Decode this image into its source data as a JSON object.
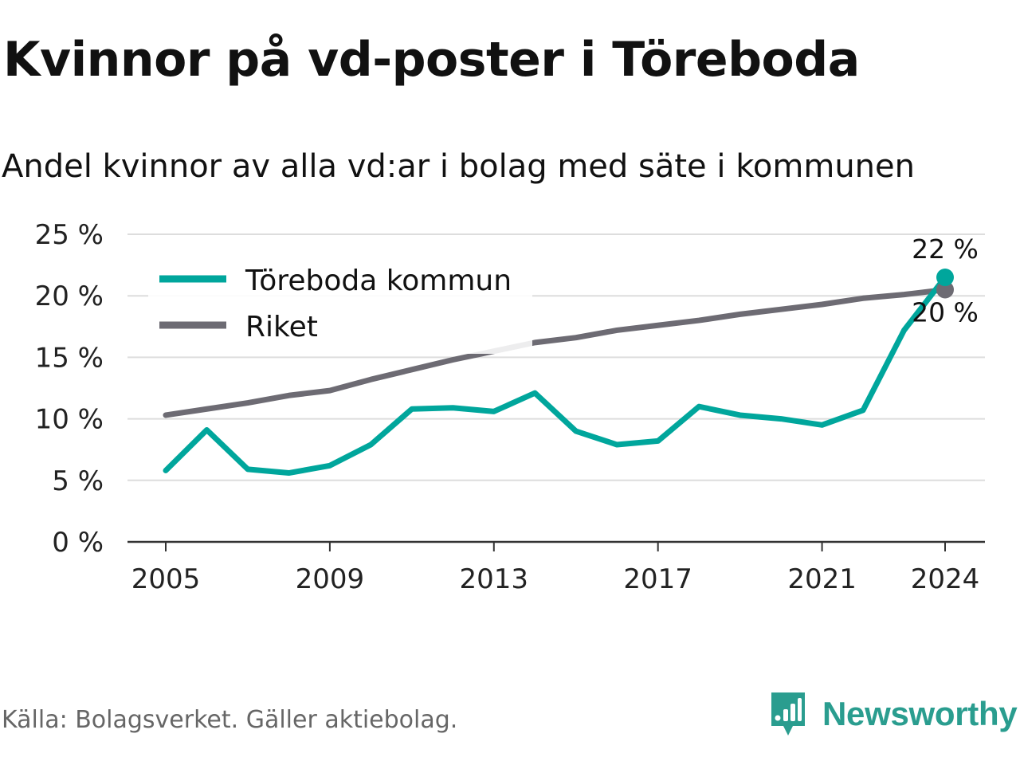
{
  "title": "Kvinnor på vd-poster i Töreboda",
  "subtitle": "Andel kvinnor av alla vd:ar i bolag med säte i kommunen",
  "source": "Källa: Bolagsverket. Gäller aktiebolag.",
  "brand": "Newsworthy",
  "colors": {
    "toreboda": "#00a69c",
    "riket": "#6d6b73",
    "grid": "#dddddd",
    "axis": "#333333",
    "brand": "#2a9d8f"
  },
  "chart_data": {
    "type": "line",
    "x": [
      2005,
      2006,
      2007,
      2008,
      2009,
      2010,
      2011,
      2012,
      2013,
      2014,
      2015,
      2016,
      2017,
      2018,
      2019,
      2020,
      2021,
      2022,
      2023,
      2024
    ],
    "x_ticks": [
      "2005",
      "2009",
      "2013",
      "2017",
      "2021",
      "2024"
    ],
    "y_ticks": [
      "0 %",
      "5 %",
      "10 %",
      "15 %",
      "20 %",
      "25 %"
    ],
    "ylim": [
      0,
      25
    ],
    "grid": true,
    "legend_position": "top-left",
    "series": [
      {
        "name": "Töreboda kommun",
        "values": [
          5.8,
          9.1,
          5.9,
          5.6,
          6.2,
          7.9,
          10.8,
          10.9,
          10.6,
          12.1,
          9.0,
          7.9,
          8.2,
          11.0,
          10.3,
          10.0,
          9.5,
          10.7,
          17.2,
          21.5
        ],
        "end_label": "22 %"
      },
      {
        "name": "Riket",
        "values": [
          10.3,
          10.8,
          11.3,
          11.9,
          12.3,
          13.2,
          14.0,
          14.8,
          15.5,
          16.2,
          16.6,
          17.2,
          17.6,
          18.0,
          18.5,
          18.9,
          19.3,
          19.8,
          20.1,
          20.5
        ],
        "end_label": "20 %"
      }
    ]
  }
}
